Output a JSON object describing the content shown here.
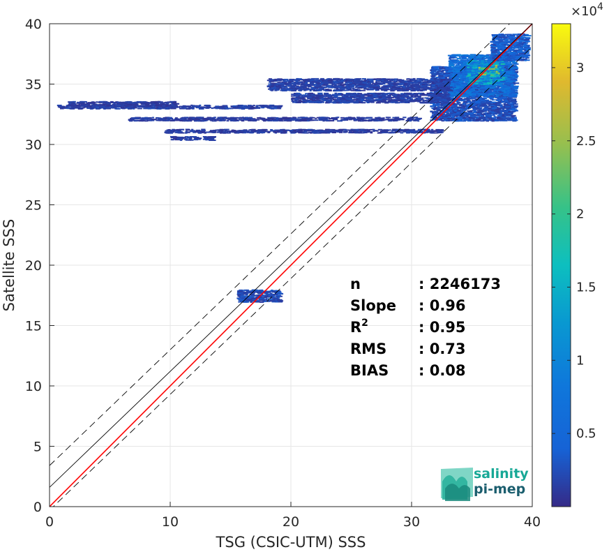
{
  "chart_data": {
    "type": "heatmap",
    "title": "",
    "xlabel": "TSG (CSIC-UTM) SSS",
    "ylabel": "Satellite SSS",
    "xlim": [
      0,
      40
    ],
    "ylim": [
      0,
      40
    ],
    "x_ticks": [
      "0",
      "10",
      "20",
      "30",
      "40"
    ],
    "y_ticks": [
      "0",
      "5",
      "10",
      "15",
      "20",
      "25",
      "30",
      "35",
      "40"
    ],
    "grid": true,
    "colorbar": {
      "colormap": "parula",
      "range": [
        0,
        33000
      ],
      "exponent_label": "×10",
      "exponent": "4",
      "ticks": [
        {
          "value": 0.5,
          "label": "0.5"
        },
        {
          "value": 1,
          "label": "1"
        },
        {
          "value": 1.5,
          "label": "1.5"
        },
        {
          "value": 2,
          "label": "2"
        },
        {
          "value": 2.5,
          "label": "2.5"
        },
        {
          "value": 3,
          "label": "3"
        }
      ]
    },
    "reference_lines": {
      "one_to_one": {
        "slope": 1,
        "intercept": 0,
        "color": "#ff0000"
      },
      "regression": {
        "slope": 0.96,
        "intercept": 1.6,
        "color": "#000000"
      },
      "upper_bound": {
        "slope": 0.96,
        "intercept": 3.4,
        "style": "dashed"
      },
      "lower_bound": {
        "slope": 0.96,
        "intercept": -0.3,
        "style": "dashed"
      }
    },
    "density_segments": [
      {
        "x0": 31.5,
        "x1": 38.5,
        "y0": 32.0,
        "y1": 36.5,
        "level": 0.08
      },
      {
        "x0": 33.0,
        "x1": 38.5,
        "y0": 34.0,
        "y1": 37.5,
        "level": 0.18
      },
      {
        "x0": 34.5,
        "x1": 37.5,
        "y0": 35.0,
        "y1": 37.0,
        "level": 0.35
      },
      {
        "x0": 35.5,
        "x1": 37.0,
        "y0": 35.8,
        "y1": 36.6,
        "level": 0.55
      },
      {
        "x0": 36.5,
        "x1": 39.5,
        "y0": 37.0,
        "y1": 39.2,
        "level": 0.12
      },
      {
        "x0": 0.6,
        "x1": 19.0,
        "y0": 33.0,
        "y1": 33.3,
        "level": 0.05
      },
      {
        "x0": 1.5,
        "x1": 10.5,
        "y0": 33.2,
        "y1": 33.6,
        "level": 0.04
      },
      {
        "x0": 18.0,
        "x1": 33.0,
        "y0": 34.5,
        "y1": 35.5,
        "level": 0.05
      },
      {
        "x0": 20.0,
        "x1": 33.0,
        "y0": 33.5,
        "y1": 34.3,
        "level": 0.05
      },
      {
        "x0": 6.5,
        "x1": 30.5,
        "y0": 32.0,
        "y1": 32.3,
        "level": 0.04
      },
      {
        "x0": 9.5,
        "x1": 32.5,
        "y0": 31.0,
        "y1": 31.3,
        "level": 0.04
      },
      {
        "x0": 10.0,
        "x1": 13.5,
        "y0": 30.4,
        "y1": 30.7,
        "level": 0.04
      },
      {
        "x0": 15.5,
        "x1": 19.0,
        "y0": 17.0,
        "y1": 18.0,
        "level": 0.07
      }
    ],
    "stats": [
      {
        "label": "n",
        "value": ": 2246173"
      },
      {
        "label": "Slope",
        "value": ": 0.96"
      },
      {
        "label": "R",
        "label_sup": "2",
        "value": ": 0.95"
      },
      {
        "label": "RMS",
        "value": ": 0.73"
      },
      {
        "label": "BIAS",
        "value": ": 0.08"
      }
    ]
  },
  "logo": {
    "line1": "salinity",
    "line2": "pi-mep",
    "color1": "#17a896",
    "color2": "#1b5e6e"
  }
}
